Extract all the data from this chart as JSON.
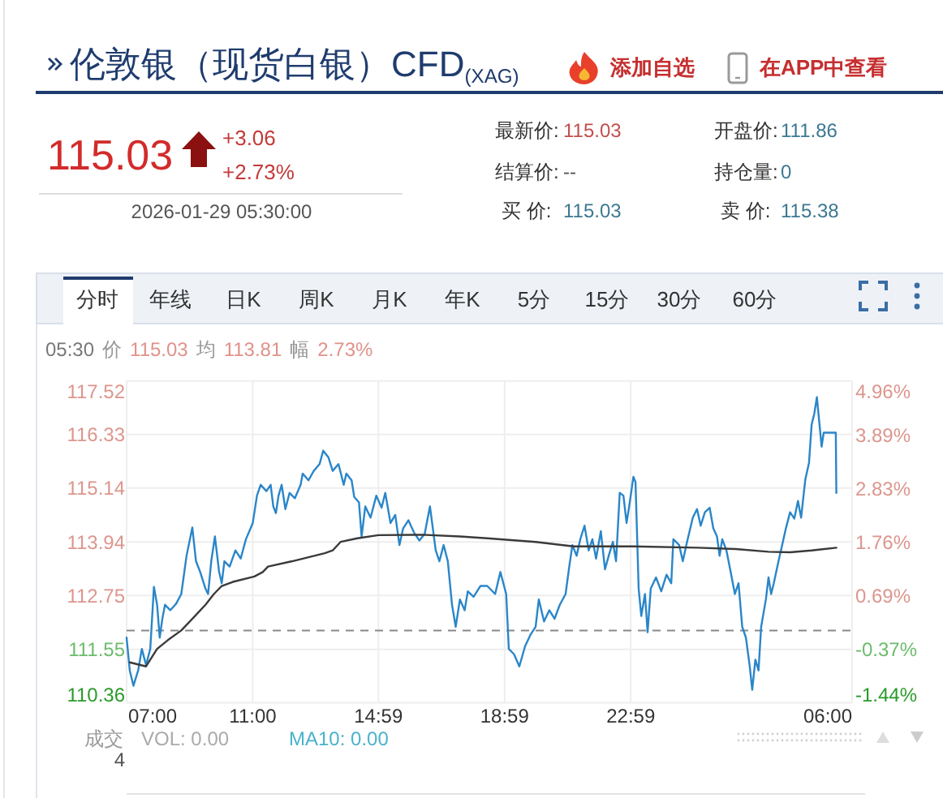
{
  "chart_data": [
    {
      "type": "other",
      "title": "伦敦银（现货白银）CFD$_{(XAG)}$",
      "annotations": [
        "添加自选",
        "在APP中查看",
        "115.03",
        "+3.06",
        "+2.73%",
        "2026-01-29 05:30:00",
        "最新价:",
        "115.03",
        "开盘价:",
        "111.86",
        "结算价:",
        "--",
        "持仓量:",
        "0",
        "买 价:",
        "115.03",
        "卖 价:",
        "115.38"
      ]
    },
    {
      "type": "line",
      "series": [
        {
          "color": "#2a86c9",
          "x": [
            "2026-01-28T07:00",
            "2026-01-28T07:06",
            "2026-01-28T07:13",
            "2026-01-28T07:22",
            "2026-01-28T07:29",
            "2026-01-28T07:37",
            "2026-01-28T07:45",
            "2026-01-28T07:52",
            "2026-01-28T07:58",
            "2026-01-28T08:03",
            "2026-01-28T08:08",
            "2026-01-28T08:13",
            "2026-01-28T08:23",
            "2026-01-28T08:34",
            "2026-01-28T08:44",
            "2026-01-28T08:54",
            "2026-01-28T09:05",
            "2026-01-28T09:12",
            "2026-01-28T09:20",
            "2026-01-28T09:30",
            "2026-01-28T09:35",
            "2026-01-28T09:41",
            "2026-01-28T09:48",
            "2026-01-28T09:56",
            "2026-01-28T10:01",
            "2026-01-28T10:06",
            "2026-01-28T10:16",
            "2026-01-28T10:27",
            "2026-01-28T10:37",
            "2026-01-28T10:47",
            "2026-01-28T11:00",
            "2026-01-28T11:08",
            "2026-01-28T11:15",
            "2026-01-28T11:26",
            "2026-01-28T11:34",
            "2026-01-28T11:39",
            "2026-01-28T11:44",
            "2026-01-28T11:49",
            "2026-01-28T11:55",
            "2026-01-28T12:02",
            "2026-01-28T12:10",
            "2026-01-28T12:20",
            "2026-01-28T12:31",
            "2026-01-28T12:35",
            "2026-01-28T12:46",
            "2026-01-28T12:56",
            "2026-01-28T13:07",
            "2026-01-28T13:14",
            "2026-01-28T13:24",
            "2026-01-28T13:32",
            "2026-01-28T13:43",
            "2026-01-28T13:53",
            "2026-01-28T13:58",
            "2026-01-28T14:08",
            "2026-01-28T14:13",
            "2026-01-28T14:22",
            "2026-01-28T14:27",
            "2026-01-28T14:34",
            "2026-01-28T14:44",
            "2026-01-28T14:55",
            "2026-01-28T15:05",
            "2026-01-28T15:12",
            "2026-01-28T15:22",
            "2026-01-28T15:31",
            "2026-01-28T15:39",
            "2026-01-28T15:46",
            "2026-01-28T15:56",
            "2026-01-28T16:07",
            "2026-01-28T16:17",
            "2026-01-28T16:27",
            "2026-01-28T16:37",
            "2026-01-28T16:48",
            "2026-01-28T16:55",
            "2026-01-28T17:03",
            "2026-01-28T17:11",
            "2026-01-28T17:19",
            "2026-01-28T17:26",
            "2026-01-28T17:34",
            "2026-01-28T17:43",
            "2026-01-28T17:49",
            "2026-01-28T18:00",
            "2026-01-28T18:13",
            "2026-01-28T18:26",
            "2026-01-28T18:41",
            "2026-01-28T18:51",
            "2026-01-28T19:02",
            "2026-01-28T19:07",
            "2026-01-28T19:17",
            "2026-01-28T19:27",
            "2026-01-28T19:38",
            "2026-01-28T19:48",
            "2026-01-28T19:58",
            "2026-01-28T20:04",
            "2026-01-28T20:14",
            "2026-01-28T20:24",
            "2026-01-28T20:34",
            "2026-01-28T20:44",
            "2026-01-28T20:55",
            "2026-01-28T21:02",
            "2026-01-28T21:08",
            "2026-01-28T21:16",
            "2026-01-28T21:23",
            "2026-01-28T21:31",
            "2026-01-28T21:39",
            "2026-01-28T21:46",
            "2026-01-28T21:53",
            "2026-01-28T22:02",
            "2026-01-28T22:10",
            "2026-01-28T22:17",
            "2026-01-28T22:25",
            "2026-01-28T22:31",
            "2026-01-28T22:38",
            "2026-01-28T22:45",
            "2026-01-28T22:51",
            "2026-01-28T22:56",
            "2026-01-28T23:04",
            "2026-01-28T23:08",
            "2026-01-28T23:14",
            "2026-01-28T23:19",
            "2026-01-28T23:26",
            "2026-01-28T23:31",
            "2026-01-28T23:37",
            "2026-01-28T23:47",
            "2026-01-28T23:57",
            "2026-01-29T00:07",
            "2026-01-29T00:16",
            "2026-01-29T00:20",
            "2026-01-29T00:31",
            "2026-01-29T00:38",
            "2026-01-29T00:46",
            "2026-01-29T00:57",
            "2026-01-29T01:05",
            "2026-01-29T01:12",
            "2026-01-29T01:20",
            "2026-01-29T01:29",
            "2026-01-29T01:36",
            "2026-01-29T01:43",
            "2026-01-29T01:48",
            "2026-01-29T01:53",
            "2026-01-29T02:01",
            "2026-01-29T02:09",
            "2026-01-29T02:17",
            "2026-01-29T02:24",
            "2026-01-29T02:31",
            "2026-01-29T02:38",
            "2026-01-29T02:45",
            "2026-01-29T02:50",
            "2026-01-29T02:56",
            "2026-01-29T03:02",
            "2026-01-29T03:07",
            "2026-01-29T03:16",
            "2026-01-29T03:21",
            "2026-01-29T03:26",
            "2026-01-29T03:31",
            "2026-01-29T03:40",
            "2026-01-29T03:47",
            "2026-01-29T03:54",
            "2026-01-29T04:02",
            "2026-01-29T04:10",
            "2026-01-29T04:17",
            "2026-01-29T04:23",
            "2026-01-29T04:31",
            "2026-01-29T04:38",
            "2026-01-29T04:43",
            "2026-01-29T04:48",
            "2026-01-29T04:53",
            "2026-01-29T04:58",
            "2026-01-29T05:02",
            "2026-01-29T05:06",
            "2026-01-29T05:29",
            "2026-01-29T05:30"
          ],
          "values": [
            111.81,
            111.08,
            110.74,
            111.08,
            111.56,
            111.2,
            111.56,
            112.94,
            112.54,
            111.81,
            112.23,
            112.54,
            112.42,
            112.56,
            112.78,
            113.63,
            114.26,
            113.51,
            113.27,
            112.9,
            112.78,
            113.51,
            114.06,
            113.27,
            113.02,
            113.51,
            113.39,
            113.75,
            113.57,
            114.0,
            114.36,
            114.97,
            115.21,
            115.07,
            115.21,
            114.73,
            114.58,
            114.97,
            115.21,
            114.67,
            115.03,
            114.91,
            115.21,
            115.46,
            115.31,
            115.52,
            115.67,
            115.97,
            115.82,
            115.52,
            115.67,
            115.21,
            115.46,
            115.31,
            114.94,
            114.82,
            114.06,
            114.73,
            114.48,
            114.97,
            114.7,
            115.03,
            114.36,
            114.54,
            113.87,
            114.24,
            114.42,
            114.14,
            113.97,
            114.12,
            114.73,
            113.75,
            113.51,
            113.87,
            113.51,
            112.54,
            112.05,
            112.66,
            112.42,
            112.84,
            112.72,
            112.96,
            112.96,
            112.78,
            113.27,
            112.78,
            111.56,
            111.44,
            111.17,
            111.62,
            111.87,
            112.05,
            112.66,
            112.17,
            112.42,
            112.23,
            112.54,
            112.78,
            113.39,
            113.87,
            113.63,
            114.0,
            114.3,
            113.75,
            114.0,
            113.57,
            114.18,
            113.33,
            113.63,
            113.94,
            113.51,
            115.03,
            114.97,
            114.36,
            114.73,
            115.39,
            115.27,
            112.9,
            112.29,
            112.78,
            111.93,
            112.9,
            113.15,
            112.84,
            113.21,
            113.02,
            114.0,
            113.87,
            113.51,
            113.94,
            114.48,
            114.67,
            114.3,
            114.6,
            114.7,
            114.24,
            114.06,
            113.63,
            114.0,
            113.75,
            113.27,
            112.78,
            113.02,
            112.05,
            111.81,
            111.2,
            110.65,
            111.32,
            111.08,
            112.05,
            112.66,
            113.15,
            112.78,
            113.02,
            113.51,
            113.87,
            114.24,
            114.6,
            114.46,
            114.85,
            114.48,
            115.33,
            115.7,
            116.55,
            116.79,
            117.16,
            116.55,
            116.06,
            116.37,
            116.37,
            115.03
          ]
        },
        {
          "color": "#3a3a3a",
          "x": [
            "2026-01-28T07:06",
            "2026-01-28T07:37",
            "2026-01-28T07:58",
            "2026-01-28T08:18",
            "2026-01-28T08:44",
            "2026-01-28T09:10",
            "2026-01-28T09:30",
            "2026-01-28T09:46",
            "2026-01-28T10:01",
            "2026-01-28T10:22",
            "2026-01-28T11:03",
            "2026-01-28T11:19",
            "2026-01-28T11:29",
            "2026-01-28T12:15",
            "2026-01-28T13:17",
            "2026-01-28T13:32",
            "2026-01-28T13:47",
            "2026-01-28T14:19",
            "2026-01-28T14:59",
            "2026-01-28T16:22",
            "2026-01-28T17:34",
            "2026-01-28T18:26",
            "2026-01-28T19:58",
            "2026-01-28T21:10",
            "2026-01-28T23:04",
            "2026-01-29T01:07",
            "2026-01-29T02:19",
            "2026-01-29T03:21",
            "2026-01-29T04:02",
            "2026-01-29T04:43",
            "2026-01-29T05:30"
          ],
          "values": [
            111.26,
            111.17,
            111.56,
            111.75,
            111.97,
            112.29,
            112.54,
            112.78,
            112.96,
            113.05,
            113.17,
            113.27,
            113.39,
            113.51,
            113.69,
            113.75,
            113.94,
            114.02,
            114.09,
            114.1,
            114.06,
            114.02,
            113.94,
            113.84,
            113.84,
            113.81,
            113.78,
            113.72,
            113.71,
            113.75,
            113.81
          ]
        }
      ],
      "xlim": [
        "2026-01-28T07:00",
        "2026-01-29T06:00"
      ],
      "xticks": [
        {
          "value": "2026-01-28T07:00",
          "label": "07:00"
        },
        {
          "value": "2026-01-28T11:00",
          "label": "11:00"
        },
        {
          "value": "2026-01-28T14:59",
          "label": "14:59"
        },
        {
          "value": "2026-01-28T18:59",
          "label": "18:59"
        },
        {
          "value": "2026-01-28T22:59",
          "label": "22:59"
        },
        {
          "value": "2026-01-29T06:00",
          "label": "06:00"
        }
      ],
      "ylim": [
        110.36,
        117.52
      ],
      "yticks": [
        117.52,
        116.33,
        115.14,
        113.94,
        112.75,
        111.55,
        110.36
      ],
      "y2lim": [
        -1.44,
        4.96
      ],
      "y2ticks": [
        {
          "value": 4.96,
          "label": "4.96%"
        },
        {
          "value": 3.89,
          "label": "3.89%"
        },
        {
          "value": 2.83,
          "label": "2.83%"
        },
        {
          "value": 1.76,
          "label": "1.76%"
        },
        {
          "value": 0.69,
          "label": "0.69%"
        },
        {
          "value": -0.37,
          "label": "-0.37%"
        },
        {
          "value": -1.44,
          "label": "-1.44%"
        }
      ],
      "ref_lines": [
        {
          "axis": "y",
          "value": 111.97,
          "color": "#888888",
          "line_style": "dashed"
        }
      ],
      "grid": true,
      "annotations": [
        "分时",
        "年线",
        "日K",
        "周K",
        "月K",
        "年K",
        "5分",
        "15分",
        "30分",
        "60分",
        "05:30",
        "价",
        "115.03",
        "均",
        "113.81",
        "幅",
        "2.73%",
        "成交",
        "4",
        "VOL: 0.00",
        "MA10: 0.00"
      ]
    }
  ]
}
